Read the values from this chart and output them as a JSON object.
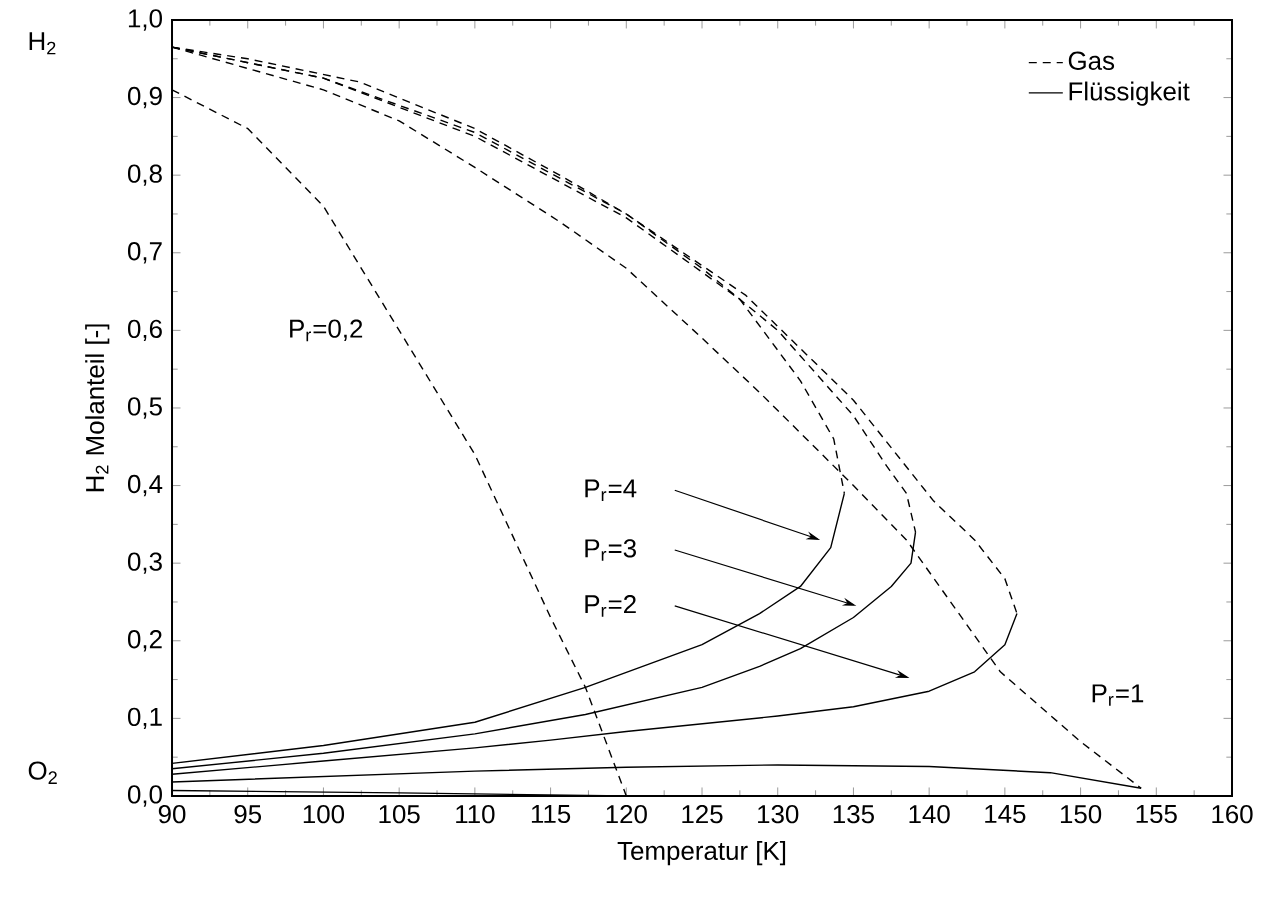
{
  "chart_data": {
    "type": "line",
    "xlabel": "Temperatur [K]",
    "ylabel": "H$_{2}$ Molanteil [-]",
    "xlim": [
      90,
      160
    ],
    "ylim": [
      0,
      1
    ],
    "xticks": [
      90,
      95,
      100,
      105,
      110,
      115,
      120,
      125,
      130,
      135,
      140,
      145,
      150,
      155,
      160
    ],
    "yticks": [
      {
        "value": 0,
        "label": "0,0"
      },
      {
        "value": 0.1,
        "label": "0,1"
      },
      {
        "value": 0.2,
        "label": "0,2"
      },
      {
        "value": 0.3,
        "label": "0,3"
      },
      {
        "value": 0.4,
        "label": "0,4"
      },
      {
        "value": 0.5,
        "label": "0,5"
      },
      {
        "value": 0.6,
        "label": "0,6"
      },
      {
        "value": 0.7,
        "label": "0,7"
      },
      {
        "value": 0.8,
        "label": "0,8"
      },
      {
        "value": 0.9,
        "label": "0,9"
      },
      {
        "value": 1,
        "label": "1,0"
      }
    ],
    "legend": "top right",
    "grid": false,
    "annotations": [
      "H$_{2}$",
      "O$_{2}$",
      "P$_{r}$=0,2",
      "P$_{r}$=1",
      "P$_{r}$=4",
      "P$_{r}$=3",
      "P$_{r}$=2"
    ],
    "series": [
      {
        "name": "Gas",
        "color": "#000000",
        "line_style": "dashed",
        "x": [
          90,
          100,
          105,
          110,
          115.6,
          120,
          125,
          128.8,
          135,
          138.5,
          144.7,
          150,
          154
        ],
        "values": [
          0.965,
          0.91,
          0.87,
          0.81,
          0.74,
          0.68,
          0.59,
          0.52,
          0.4,
          0.33,
          0.16,
          0.07,
          0.01
        ]
      },
      {
        "name": "Flüssigkeit",
        "color": "#000000",
        "line_style": "solid",
        "x": [
          90,
          100,
          110,
          120,
          130,
          140,
          148,
          154
        ],
        "values": [
          0.018,
          0.025,
          0.032,
          0.037,
          0.04,
          0.038,
          0.03,
          0.01
        ]
      },
      {
        "color": "#000000",
        "line_style": "dashed",
        "x": [
          90,
          95,
          100,
          105,
          110,
          115,
          117.3,
          120
        ],
        "values": [
          0.91,
          0.86,
          0.76,
          0.6,
          0.44,
          0.23,
          0.14,
          0.0
        ]
      },
      {
        "color": "#000000",
        "line_style": "solid",
        "x": [
          90,
          105,
          120
        ],
        "values": [
          0.007,
          0.004,
          0.0
        ]
      },
      {
        "color": "#000000",
        "line_style": "dashed",
        "x": [
          90,
          95,
          102.4,
          110,
          115.6,
          120,
          127.9,
          135,
          140.3,
          143,
          145,
          145.8
        ],
        "values": [
          0.965,
          0.95,
          0.92,
          0.86,
          0.8,
          0.75,
          0.645,
          0.51,
          0.38,
          0.33,
          0.28,
          0.235
        ]
      },
      {
        "color": "#000000",
        "line_style": "solid",
        "x": [
          90,
          100,
          110,
          115,
          120,
          130,
          135,
          140,
          143,
          145,
          145.8
        ],
        "values": [
          0.028,
          0.045,
          0.062,
          0.072,
          0.083,
          0.103,
          0.115,
          0.135,
          0.16,
          0.195,
          0.235
        ]
      },
      {
        "color": "#000000",
        "line_style": "dashed",
        "x": [
          90,
          100,
          110,
          120,
          125,
          130,
          135,
          137.2,
          138.5,
          139.1
        ],
        "values": [
          0.965,
          0.925,
          0.855,
          0.75,
          0.68,
          0.6,
          0.49,
          0.425,
          0.39,
          0.34
        ]
      },
      {
        "color": "#000000",
        "line_style": "solid",
        "x": [
          90,
          100,
          110,
          117.3,
          125,
          128.8,
          131.5,
          135,
          137.5,
          138.8,
          139.1
        ],
        "values": [
          0.035,
          0.055,
          0.08,
          0.105,
          0.14,
          0.167,
          0.19,
          0.23,
          0.27,
          0.3,
          0.34
        ]
      },
      {
        "color": "#000000",
        "line_style": "dashed",
        "x": [
          90,
          100,
          110,
          120,
          127.5,
          131.5,
          133.7,
          134,
          134.4
        ],
        "values": [
          0.965,
          0.925,
          0.85,
          0.745,
          0.64,
          0.535,
          0.46,
          0.43,
          0.39
        ]
      },
      {
        "color": "#000000",
        "line_style": "solid",
        "x": [
          90,
          100,
          110,
          117.3,
          125,
          128.8,
          131.5,
          133.5,
          134.4
        ],
        "values": [
          0.042,
          0.065,
          0.095,
          0.14,
          0.195,
          0.235,
          0.27,
          0.32,
          0.39
        ]
      }
    ]
  }
}
